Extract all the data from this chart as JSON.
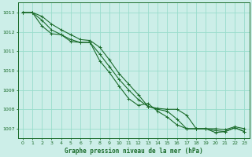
{
  "xlabel": "Graphe pression niveau de la mer (hPa)",
  "bg_color": "#cceee8",
  "grid_color": "#99ddcc",
  "line_color": "#1a6b2a",
  "xlabel_color": "#1a6b2a",
  "x": [
    0,
    1,
    2,
    3,
    4,
    5,
    6,
    7,
    8,
    9,
    10,
    11,
    12,
    13,
    14,
    15,
    16,
    17,
    18,
    19,
    20,
    21,
    22,
    23
  ],
  "line1": [
    1013.0,
    1013.0,
    1012.8,
    1012.4,
    1012.1,
    1011.85,
    1011.6,
    1011.55,
    1011.2,
    1010.55,
    1009.85,
    1009.3,
    1008.75,
    1008.15,
    1008.05,
    1008.0,
    1008.0,
    1007.7,
    1007.0,
    1007.0,
    1007.0,
    1006.95,
    1007.1,
    1007.0
  ],
  "line2": [
    1013.0,
    1013.0,
    1012.6,
    1012.1,
    1011.85,
    1011.6,
    1011.45,
    1011.45,
    1010.85,
    1010.2,
    1009.55,
    1009.0,
    1008.5,
    1008.15,
    1008.0,
    1007.9,
    1007.5,
    1007.0,
    1007.0,
    1007.0,
    1006.9,
    1006.85,
    1007.05,
    1006.85
  ],
  "line3": [
    1013.0,
    1013.0,
    1012.3,
    1011.9,
    1011.85,
    1011.5,
    1011.45,
    1011.45,
    1010.5,
    1009.9,
    1009.2,
    1008.55,
    1008.2,
    1008.3,
    1007.9,
    1007.6,
    1007.2,
    1007.0,
    1007.0,
    1007.0,
    1006.8,
    1006.85,
    1007.05,
    1006.85
  ],
  "ylim_min": 1006.5,
  "ylim_max": 1013.5,
  "yticks": [
    1007,
    1008,
    1009,
    1010,
    1011,
    1012,
    1013
  ],
  "xticks": [
    0,
    1,
    2,
    3,
    4,
    5,
    6,
    7,
    8,
    9,
    10,
    11,
    12,
    13,
    14,
    15,
    16,
    17,
    18,
    19,
    20,
    21,
    22,
    23
  ],
  "figwidth": 3.2,
  "figheight": 2.0,
  "dpi": 100
}
